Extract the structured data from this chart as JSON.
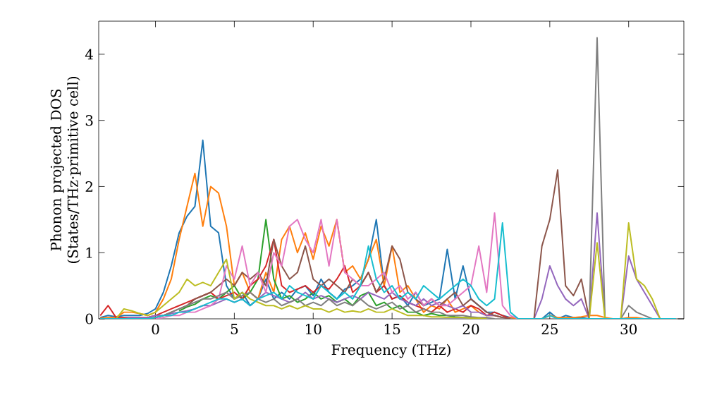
{
  "chart_data": {
    "type": "line",
    "xlabel": "Frequency (THz)",
    "ylabel": "Phonon projected DOS (States/THz·primitive cell)",
    "xlim": [
      -3.6,
      33.5
    ],
    "ylim": [
      0,
      4.5
    ],
    "xticks": [
      0,
      5,
      10,
      15,
      20,
      25,
      30
    ],
    "yticks": [
      0,
      1,
      2,
      3,
      4
    ],
    "grid": false,
    "marker": "none",
    "line_style": "solid",
    "x": [
      -3.5,
      -3,
      -2.5,
      -2,
      -1.5,
      -1,
      -0.5,
      0,
      0.5,
      1,
      1.5,
      2,
      2.5,
      3,
      3.5,
      4,
      4.5,
      5,
      5.5,
      6,
      6.5,
      7,
      7.5,
      8,
      8.5,
      9,
      9.5,
      10,
      10.5,
      11,
      11.5,
      12,
      12.5,
      13,
      13.5,
      14,
      14.5,
      15,
      15.5,
      16,
      16.5,
      17,
      17.5,
      18,
      18.5,
      19,
      19.5,
      20,
      20.5,
      21,
      21.5,
      22,
      22.5,
      23,
      23.5,
      24,
      24.5,
      25,
      25.5,
      26,
      26.5,
      27,
      27.5,
      28,
      28.5,
      29,
      29.5,
      30,
      30.5,
      31,
      31.5,
      32,
      32.5,
      33
    ],
    "series": [
      {
        "color": "#1f77b4",
        "values": [
          0.02,
          0.05,
          0.03,
          0.05,
          0.05,
          0.05,
          0.08,
          0.15,
          0.4,
          0.8,
          1.3,
          1.55,
          1.7,
          2.7,
          1.4,
          1.3,
          0.5,
          0.3,
          0.4,
          0.2,
          0.3,
          0.6,
          0.3,
          0.4,
          0.3,
          0.45,
          0.5,
          0.35,
          0.6,
          0.4,
          0.3,
          0.45,
          0.5,
          0.6,
          0.9,
          1.5,
          0.5,
          0.3,
          0.35,
          0.2,
          0.4,
          0.2,
          0.25,
          0.3,
          1.05,
          0.3,
          0.8,
          0.3,
          0.2,
          0.1,
          0.1,
          0.05,
          0.02,
          0,
          null,
          null,
          0,
          0.1,
          0,
          0.05,
          0.02,
          0.02,
          0,
          null,
          null,
          null,
          null,
          null,
          null,
          null,
          null,
          null,
          null,
          null
        ]
      },
      {
        "color": "#ff7f0e",
        "values": [
          0.01,
          0.02,
          0.02,
          0.1,
          0.1,
          0.08,
          0.05,
          0.1,
          0.3,
          0.6,
          1.2,
          1.7,
          2.2,
          1.4,
          2.0,
          1.9,
          1.4,
          0.5,
          0.7,
          0.4,
          0.3,
          0.7,
          0.4,
          1.2,
          1.4,
          1.0,
          1.3,
          0.9,
          1.4,
          1.1,
          1.5,
          0.7,
          0.8,
          0.6,
          0.9,
          1.2,
          0.5,
          1.1,
          0.4,
          0.5,
          0.3,
          0.1,
          0.2,
          0.15,
          0.3,
          0.1,
          0.15,
          0.2,
          0.1,
          0.05,
          0.05,
          0.02,
          0.02,
          0,
          null,
          null,
          0,
          0.05,
          0.02,
          0.02,
          0.02,
          0.03,
          0.05,
          0.05,
          0.02,
          0,
          0,
          0.02,
          0.02,
          0,
          null,
          null,
          null,
          null
        ]
      },
      {
        "color": "#2ca02c",
        "values": [
          null,
          null,
          null,
          null,
          null,
          null,
          null,
          null,
          null,
          null,
          0.12,
          0.18,
          0.22,
          0.3,
          0.35,
          0.3,
          0.4,
          0.5,
          0.3,
          0.4,
          0.6,
          1.5,
          0.6,
          0.3,
          0.35,
          0.25,
          0.3,
          0.4,
          0.3,
          0.35,
          0.25,
          0.3,
          0.2,
          0.35,
          0.4,
          0.2,
          0.25,
          0.15,
          0.2,
          0.1,
          0.1,
          0.05,
          0.08,
          0.05,
          0.05,
          0.03,
          0.02,
          0.02,
          null,
          null,
          null,
          null,
          null,
          null,
          null,
          null,
          null,
          null,
          null,
          null,
          null,
          null,
          null,
          null,
          null,
          null,
          null,
          null,
          null,
          null,
          null,
          null,
          null,
          null
        ]
      },
      {
        "color": "#d62728",
        "values": [
          0.05,
          0.2,
          0.02,
          0.02,
          0.02,
          0.02,
          0.02,
          0.05,
          0.1,
          0.15,
          0.2,
          0.25,
          0.3,
          0.35,
          0.4,
          0.3,
          0.35,
          0.4,
          0.3,
          0.5,
          0.6,
          0.8,
          1.2,
          0.5,
          0.4,
          0.45,
          0.5,
          0.4,
          0.5,
          0.45,
          0.6,
          0.8,
          0.4,
          0.5,
          0.7,
          0.4,
          0.5,
          0.3,
          0.35,
          0.25,
          0.2,
          0.15,
          0.1,
          0.2,
          0.1,
          0.15,
          0.1,
          0.2,
          0.15,
          0.05,
          0.1,
          0.05,
          0,
          null,
          null,
          null,
          null,
          null,
          null,
          null,
          null,
          null,
          null,
          null,
          null,
          null,
          null,
          null,
          null,
          null,
          null,
          null,
          null,
          null
        ]
      },
      {
        "color": "#9467bd",
        "values": [
          null,
          null,
          null,
          0,
          0.02,
          0.02,
          0.02,
          0.05,
          0.05,
          0.08,
          0.1,
          0.12,
          0.15,
          0.2,
          0.2,
          0.25,
          0.3,
          0.25,
          0.3,
          0.2,
          0.3,
          0.4,
          0.35,
          0.3,
          0.25,
          0.3,
          0.4,
          0.3,
          0.35,
          0.3,
          0.25,
          0.3,
          0.35,
          0.3,
          0.4,
          0.35,
          0.3,
          0.4,
          0.3,
          0.25,
          0.2,
          0.3,
          0.2,
          0.25,
          0.2,
          0.15,
          0.2,
          0.1,
          0.1,
          0.05,
          0.05,
          0.02,
          0,
          null,
          null,
          0,
          0.3,
          0.8,
          0.5,
          0.3,
          0.2,
          0.3,
          0,
          1.6,
          0,
          null,
          0,
          0.95,
          0.6,
          0.4,
          0.2,
          0,
          null,
          null
        ]
      },
      {
        "color": "#8c564b",
        "values": [
          null,
          null,
          null,
          null,
          null,
          null,
          0,
          0.02,
          0.05,
          0.1,
          0.15,
          0.2,
          0.3,
          0.35,
          0.4,
          0.5,
          0.6,
          0.5,
          0.7,
          0.6,
          0.7,
          0.5,
          1.2,
          0.8,
          0.6,
          0.7,
          1.1,
          0.6,
          0.5,
          0.6,
          0.5,
          0.4,
          0.6,
          0.5,
          0.7,
          0.4,
          0.6,
          1.1,
          0.9,
          0.4,
          0.3,
          0.2,
          0.3,
          0.2,
          0.3,
          0.4,
          0.2,
          0.3,
          0.2,
          0.1,
          0.05,
          0.02,
          0,
          null,
          null,
          0,
          1.1,
          1.5,
          2.25,
          0.5,
          0.35,
          0.6,
          0,
          null,
          null,
          null,
          null,
          null,
          null,
          null,
          null,
          null,
          null,
          null
        ]
      },
      {
        "color": "#e377c2",
        "values": [
          null,
          null,
          null,
          null,
          null,
          null,
          null,
          0,
          0.02,
          0.05,
          0.05,
          0.1,
          0.1,
          0.15,
          0.2,
          0.3,
          0.8,
          0.6,
          1.1,
          0.5,
          0.7,
          0.4,
          1.0,
          0.8,
          1.4,
          1.5,
          1.2,
          1.0,
          1.5,
          0.8,
          1.5,
          0.7,
          0.6,
          0.5,
          0.5,
          0.6,
          0.7,
          0.4,
          0.5,
          0.3,
          0.4,
          0.2,
          0.3,
          0.2,
          0.2,
          0.3,
          0.4,
          0.5,
          1.1,
          0.4,
          1.6,
          0.2,
          0.05,
          0,
          null,
          null,
          null,
          null,
          null,
          null,
          null,
          null,
          null,
          null,
          null,
          null,
          null,
          null,
          null,
          null,
          null,
          null,
          null,
          null
        ]
      },
      {
        "color": "#7f7f7f",
        "values": [
          null,
          null,
          null,
          null,
          null,
          null,
          0,
          0.02,
          0.05,
          0.1,
          0.15,
          0.2,
          0.25,
          0.3,
          0.3,
          0.35,
          0.4,
          0.3,
          0.35,
          0.4,
          0.3,
          0.25,
          0.3,
          0.2,
          0.25,
          0.3,
          0.2,
          0.25,
          0.2,
          0.3,
          0.2,
          0.25,
          0.2,
          0.3,
          0.2,
          0.15,
          0.2,
          0.25,
          0.15,
          0.2,
          0.1,
          0.15,
          0.1,
          0.1,
          0.05,
          0.05,
          0.05,
          0.03,
          0.02,
          0.02,
          0,
          null,
          null,
          null,
          null,
          null,
          null,
          null,
          null,
          null,
          null,
          null,
          0,
          4.25,
          0,
          null,
          0,
          0.2,
          0.1,
          0.05,
          0,
          null,
          null,
          null
        ]
      },
      {
        "color": "#bcbd22",
        "values": [
          null,
          null,
          0,
          0.15,
          0.12,
          0.08,
          0.05,
          0.1,
          0.2,
          0.3,
          0.4,
          0.6,
          0.5,
          0.55,
          0.5,
          0.7,
          0.9,
          0.3,
          0.4,
          0.3,
          0.25,
          0.2,
          0.2,
          0.15,
          0.2,
          0.15,
          0.2,
          0.15,
          0.15,
          0.1,
          0.15,
          0.1,
          0.12,
          0.1,
          0.15,
          0.1,
          0.1,
          0.15,
          0.1,
          0.05,
          0.05,
          0.05,
          0.03,
          0.03,
          0.02,
          0.02,
          0.02,
          0.01,
          0.01,
          0,
          null,
          null,
          null,
          null,
          null,
          null,
          null,
          null,
          null,
          null,
          null,
          null,
          0,
          1.15,
          0,
          null,
          0,
          1.45,
          0.6,
          0.5,
          0.3,
          0,
          null,
          null
        ]
      },
      {
        "color": "#17becf",
        "values": [
          0,
          0,
          0,
          0,
          0,
          0,
          0,
          0.02,
          0.05,
          0.05,
          0.1,
          0.1,
          0.15,
          0.2,
          0.25,
          0.3,
          0.3,
          0.25,
          0.3,
          0.2,
          0.3,
          0.35,
          0.4,
          0.3,
          0.5,
          0.4,
          0.35,
          0.3,
          0.5,
          0.4,
          0.3,
          0.4,
          0.3,
          0.5,
          1.1,
          0.6,
          0.4,
          0.5,
          0.3,
          0.4,
          0.3,
          0.5,
          0.4,
          0.3,
          0.4,
          0.5,
          0.6,
          0.5,
          0.3,
          0.2,
          0.3,
          1.45,
          0.1,
          0,
          0,
          0,
          0,
          0.05,
          0,
          0,
          0,
          0,
          0,
          0,
          0,
          0,
          0,
          0,
          0,
          0,
          0,
          0,
          0,
          0
        ]
      }
    ]
  }
}
